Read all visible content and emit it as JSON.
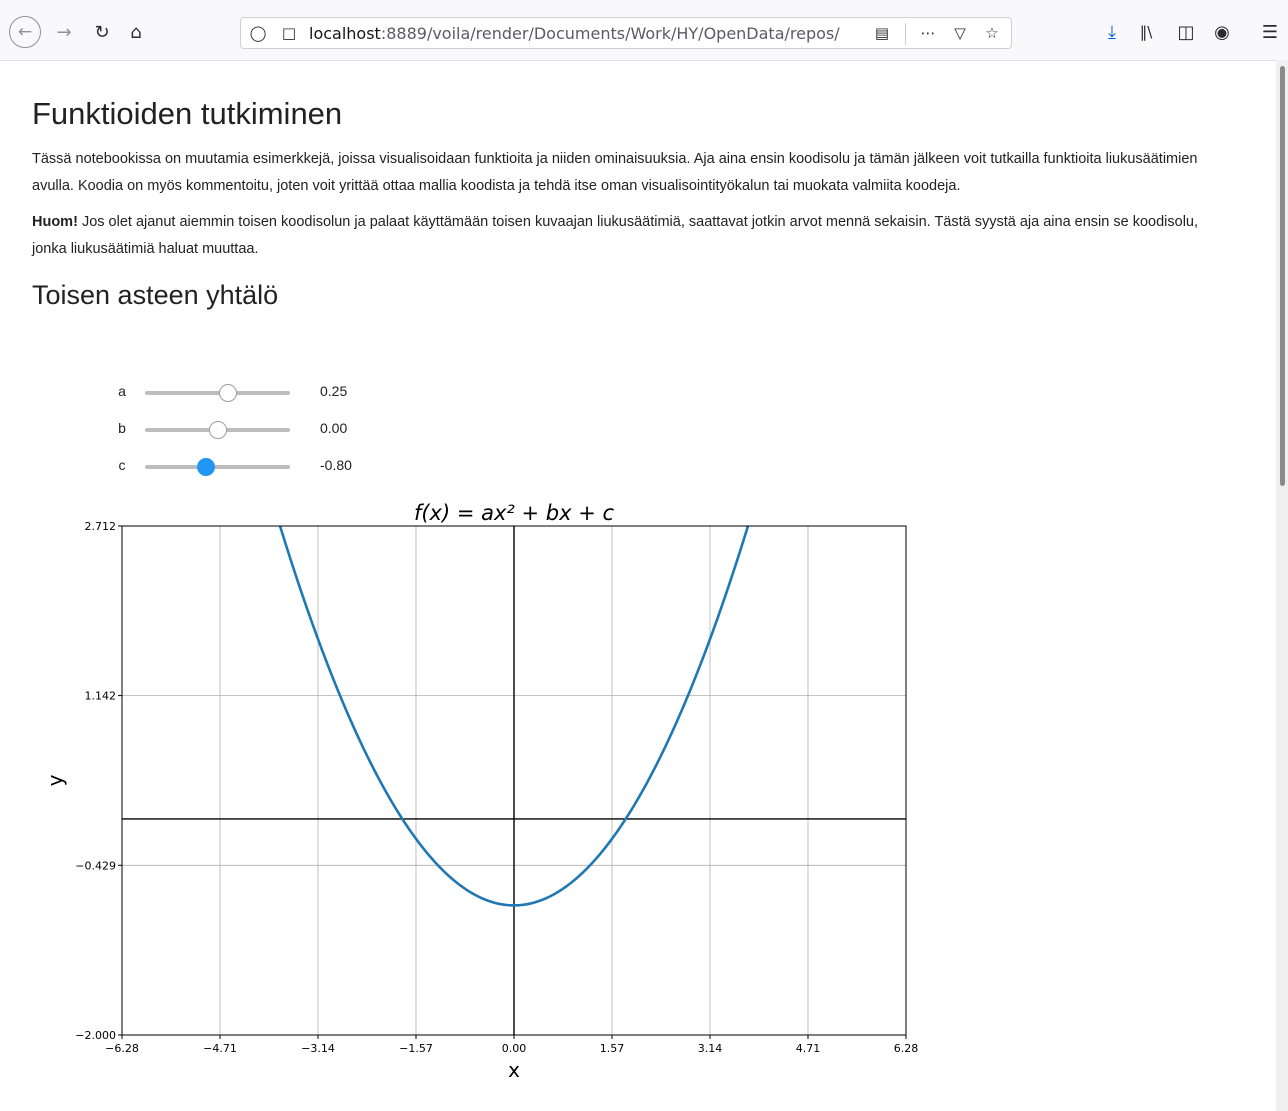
{
  "browser": {
    "url_host": "localhost",
    "url_rest": ":8889/voila/render/Documents/Work/HY/OpenData/repos/"
  },
  "page": {
    "title": "Funktioiden tutkiminen",
    "intro": "Tässä notebookissa on muutamia esimerkkejä, joissa visualisoidaan funktioita ja niiden ominaisuuksia. Aja aina ensin koodisolu ja tämän jälkeen voit tutkailla funktioita liukusäätimien avulla. Koodia on myös kommentoitu, joten voit yrittää ottaa mallia koodista ja tehdä itse oman visualisointityökalun tai muokata valmiita koodeja.",
    "note_bold": "Huom!",
    "note_text": " Jos olet ajanut aiemmin toisen koodisolun ja palaat käyttämään toisen kuvaajan liukusäätimiä, saattavat jotkin arvot mennä sekaisin. Tästä syystä aja aina ensin se koodisolu, jonka liukusäätimiä haluat muuttaa.",
    "section_title": "Toisen asteen yhtälö"
  },
  "sliders": [
    {
      "label": "a",
      "value": "0.25",
      "level": 0.57
    },
    {
      "label": "b",
      "value": "0.00",
      "level": 0.5
    },
    {
      "label": "c",
      "value": "-0.80",
      "level": 0.42
    }
  ],
  "chart_data": {
    "type": "line",
    "title": "f(x) = ax² + bx + c",
    "xlabel": "x",
    "ylabel": "y",
    "xlim": [
      -6.28,
      6.28
    ],
    "ylim": [
      -2.0,
      2.712
    ],
    "xticks": [
      "−6.28",
      "−4.71",
      "−3.14",
      "−1.57",
      "0.00",
      "1.57",
      "3.14",
      "4.71",
      "6.28"
    ],
    "xtick_values": [
      -6.28,
      -4.71,
      -3.14,
      -1.57,
      0,
      1.57,
      3.14,
      4.71,
      6.28
    ],
    "yticks": [
      "−2.000",
      "−0.429",
      "1.142",
      "2.712"
    ],
    "ytick_values": [
      -2.0,
      -0.429,
      1.142,
      2.712
    ],
    "grid": true,
    "series": [
      {
        "a": 0.25,
        "b": 0.0,
        "c": -0.8,
        "color": "#1f77b4"
      }
    ]
  }
}
